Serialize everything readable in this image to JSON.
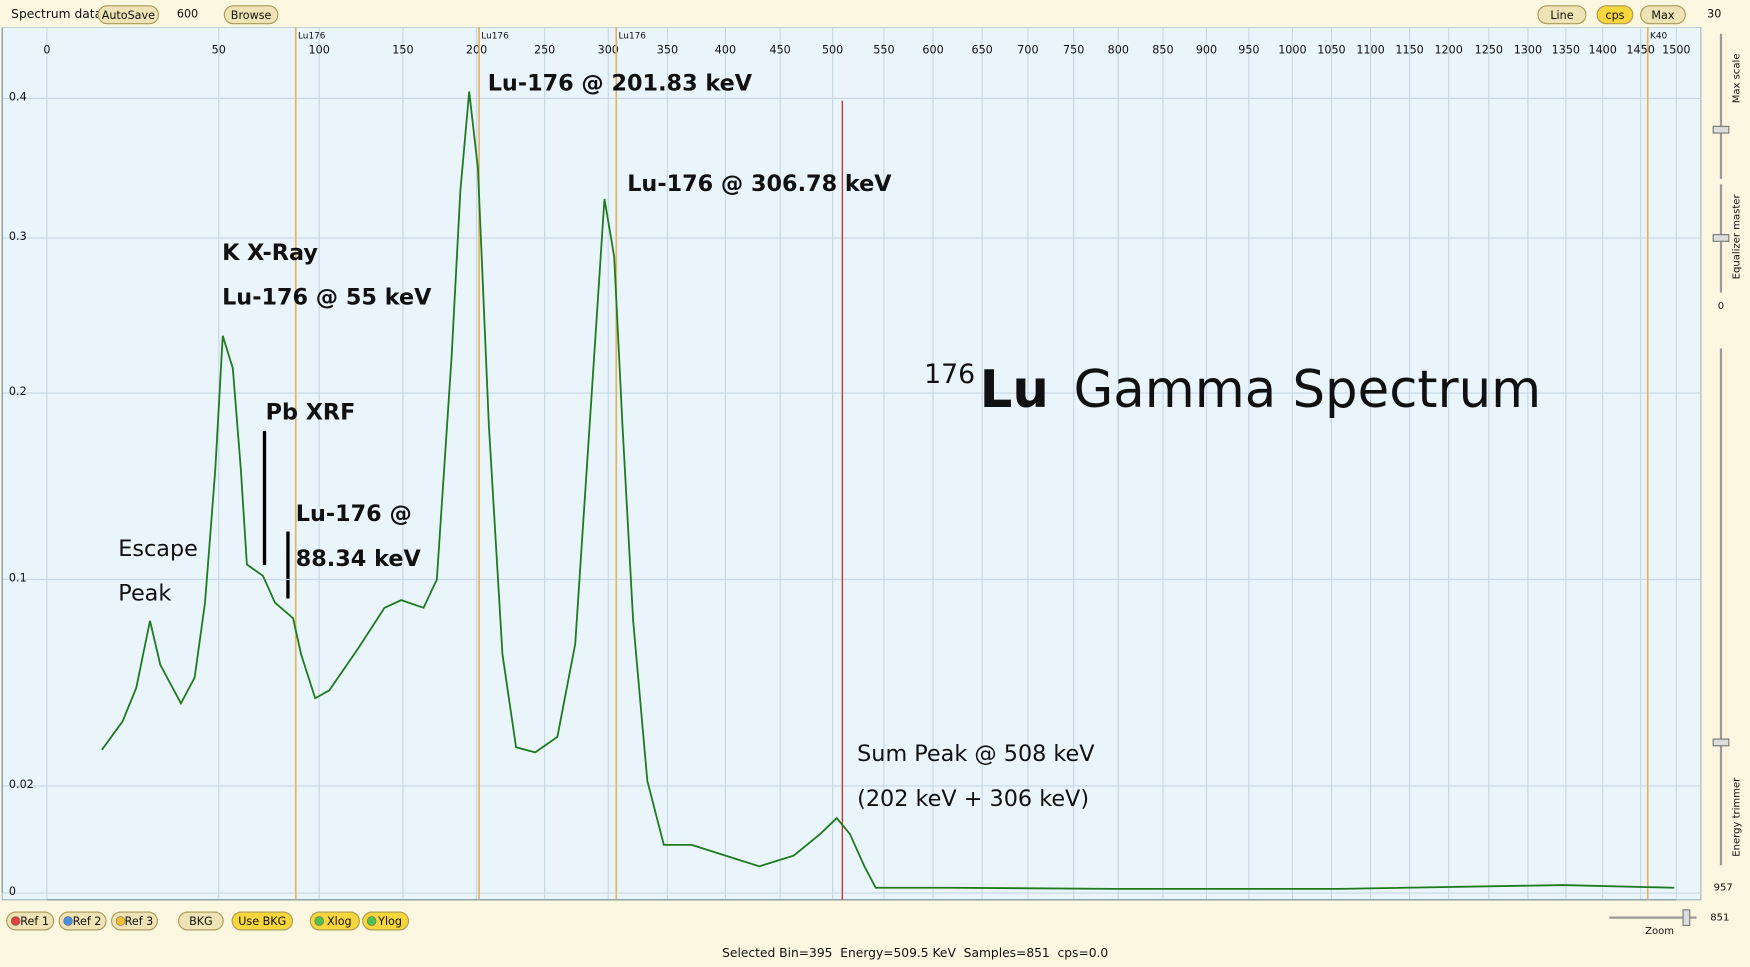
{
  "toolbar": {
    "label": "Spectrum data",
    "autosave": "AutoSave",
    "count": "600",
    "browse": "Browse",
    "line": "Line",
    "cps": "cps",
    "max": "Max",
    "max_value": "30"
  },
  "side_panel": {
    "max_scale": "Max scale",
    "equalizer": "Equalizer master",
    "equalizer_value": "0",
    "trimmer": "Energy trimmer",
    "trimmer_value": "957",
    "zoom_value": "851",
    "zoom": "Zoom"
  },
  "bottom_bar": {
    "buttons": [
      "Ref 1",
      "Ref 2",
      "Ref 3",
      "BKG",
      "Use BKG",
      "Xlog",
      "Ylog"
    ]
  },
  "status": "Selected Bin=395  Energy=509.5 KeV  Samples=851  cps=0.0",
  "chart_data": {
    "type": "line",
    "title_mass": "176",
    "title_element": "Lu",
    "title_rest": "Gamma Spectrum",
    "color": "#1d7a1d",
    "grid": true,
    "xlim": [
      0,
      1500
    ],
    "ylim": [
      0,
      0.45
    ],
    "xticks": [
      0,
      50,
      100,
      150,
      200,
      250,
      300,
      350,
      400,
      450,
      500,
      550,
      600,
      650,
      700,
      750,
      800,
      850,
      900,
      950,
      1000,
      1050,
      1100,
      1150,
      1200,
      1250,
      1300,
      1350,
      1400,
      1450,
      1500
    ],
    "yticks": [
      0,
      0.02,
      0.1,
      0.2,
      0.3,
      0.4
    ],
    "x": [
      16,
      22,
      26,
      30,
      33,
      39,
      43,
      46,
      49,
      52,
      57,
      61,
      64,
      72,
      78,
      87,
      91,
      98,
      106,
      123,
      139,
      149,
      164,
      173,
      183,
      189,
      195,
      201,
      209,
      219,
      229,
      243,
      260,
      274,
      287,
      297,
      305,
      312,
      321,
      333,
      347,
      371,
      400,
      431,
      463,
      488,
      504,
      517,
      531,
      542,
      617,
      796,
      1060,
      1346,
      1497
    ],
    "values": [
      0.034,
      0.045,
      0.058,
      0.084,
      0.067,
      0.052,
      0.062,
      0.091,
      0.159,
      0.237,
      0.216,
      0.159,
      0.108,
      0.102,
      0.091,
      0.085,
      0.071,
      0.054,
      0.057,
      0.073,
      0.089,
      0.092,
      0.089,
      0.1,
      0.223,
      0.334,
      0.405,
      0.35,
      0.183,
      0.071,
      0.035,
      0.033,
      0.039,
      0.075,
      0.2,
      0.328,
      0.288,
      0.183,
      0.084,
      0.022,
      0.009,
      0.009,
      0.007,
      0.005,
      0.007,
      0.011,
      0.014,
      0.011,
      0.005,
      0.001,
      0.001,
      0.0008,
      0.0008,
      0.0015,
      0.001
    ],
    "reference_lines": [
      {
        "label": "Lu176",
        "energy": 88.34
      },
      {
        "label": "Lu176",
        "energy": 201.83
      },
      {
        "label": "Lu176",
        "energy": 306.78
      },
      {
        "label": "K40",
        "energy": 1460
      }
    ],
    "cursor_energy": 509.5,
    "annotations": [
      "Lu-176 @ 201.83 keV",
      "Lu-176 @ 306.78 keV",
      "K X-Ray",
      "Lu-176 @ 55 keV",
      "Pb XRF",
      "Lu-176 @",
      "88.34 keV",
      "Escape",
      "Peak",
      "Sum Peak @ 508 keV",
      "(202 keV + 306 keV)"
    ]
  }
}
